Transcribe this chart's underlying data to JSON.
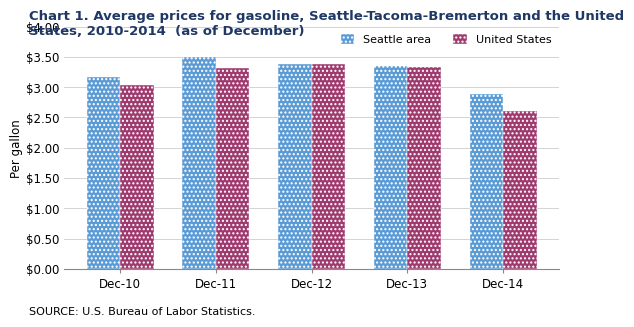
{
  "title": "Chart 1. Average prices for gasoline, Seattle-Tacoma-Bremerton and the United\nStates, 2010-2014  (as of December)",
  "ylabel": "Per gallon",
  "categories": [
    "Dec-10",
    "Dec-11",
    "Dec-12",
    "Dec-13",
    "Dec-14"
  ],
  "seattle_values": [
    3.16,
    3.5,
    3.38,
    3.35,
    2.88
  ],
  "us_values": [
    3.04,
    3.32,
    3.38,
    3.33,
    2.6
  ],
  "seattle_color": "#5B9BD5",
  "us_color": "#9E3A6E",
  "ylim": [
    0.0,
    4.0
  ],
  "yticks": [
    0.0,
    0.5,
    1.0,
    1.5,
    2.0,
    2.5,
    3.0,
    3.5,
    4.0
  ],
  "legend_seattle": "Seattle area",
  "legend_us": "United States",
  "source_text": "SOURCE: U.S. Bureau of Labor Statistics.",
  "bar_width": 0.35,
  "figure_bg": "#FFFFFF",
  "plot_bg": "#FFFFFF",
  "title_fontsize": 9.5,
  "title_color": "#1F3864",
  "axis_label_fontsize": 8.5,
  "tick_fontsize": 8.5,
  "source_fontsize": 8
}
